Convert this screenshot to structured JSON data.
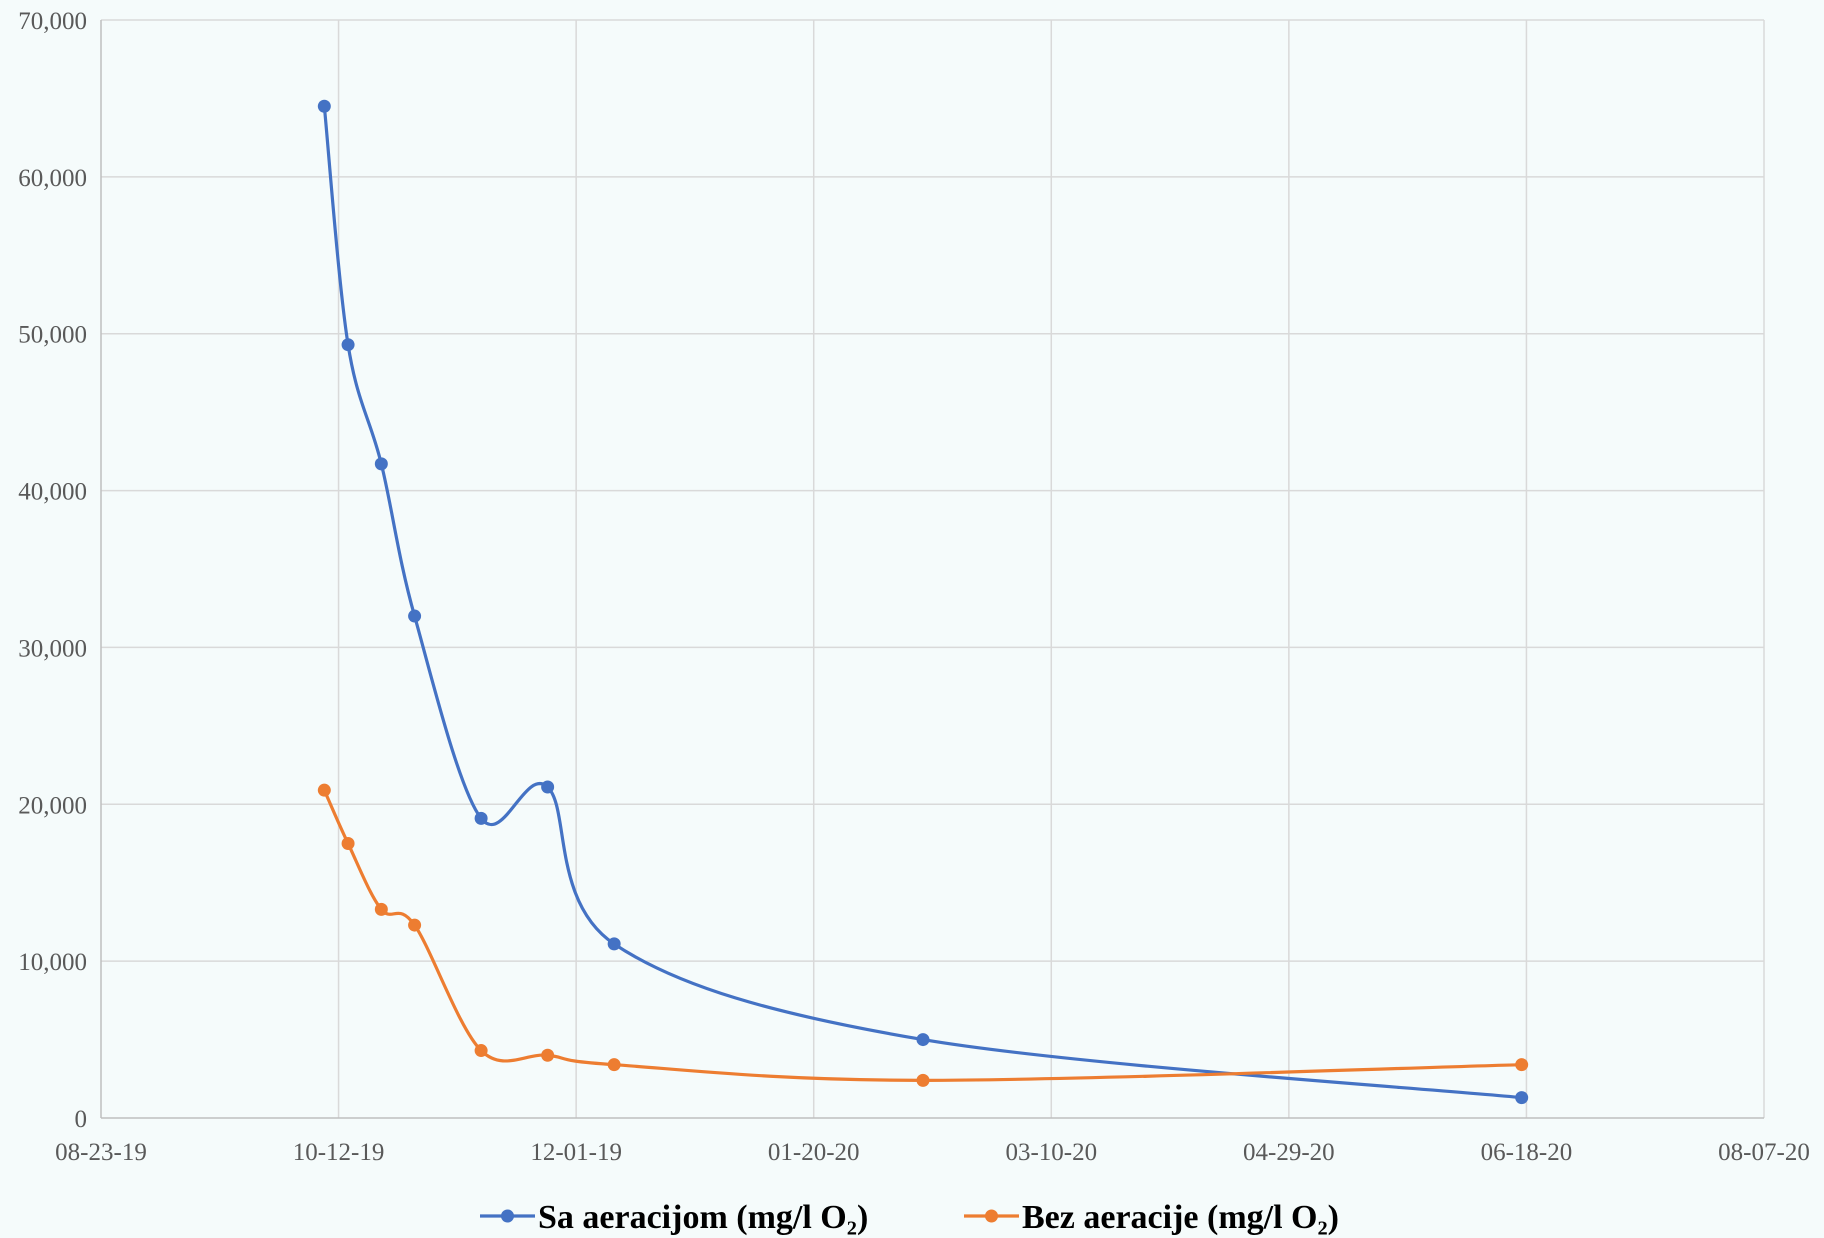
{
  "chart_data": {
    "type": "line",
    "title": "",
    "xlabel": "",
    "ylabel": "",
    "x_axis": {
      "type": "date",
      "range": [
        "2019-08-23",
        "2020-08-07"
      ],
      "tick_labels": [
        "08-23-19",
        "10-12-19",
        "12-01-19",
        "01-20-20",
        "03-10-20",
        "04-29-20",
        "06-18-20",
        "08-07-20"
      ],
      "tick_dates": [
        "2019-08-23",
        "2019-10-12",
        "2019-12-01",
        "2020-01-20",
        "2020-03-10",
        "2020-04-29",
        "2020-06-18",
        "2020-08-07"
      ]
    },
    "y_axis": {
      "range": [
        0,
        70000
      ],
      "ticks": [
        0,
        10000,
        20000,
        30000,
        40000,
        50000,
        60000,
        70000
      ],
      "tick_labels": [
        "0",
        "10,000",
        "20,000",
        "30,000",
        "40,000",
        "50,000",
        "60,000",
        "70,000"
      ]
    },
    "grid": true,
    "smooth": true,
    "legend_position": "bottom",
    "series": [
      {
        "name": "Sa aeracijom (mg/l O₂)",
        "color": "#4472c4",
        "marker": "circle",
        "points": [
          {
            "x": "2019-10-09",
            "y": 64500
          },
          {
            "x": "2019-10-14",
            "y": 49300
          },
          {
            "x": "2019-10-21",
            "y": 41700
          },
          {
            "x": "2019-10-28",
            "y": 32000
          },
          {
            "x": "2019-11-11",
            "y": 19100
          },
          {
            "x": "2019-11-25",
            "y": 21100
          },
          {
            "x": "2019-12-09",
            "y": 11100
          },
          {
            "x": "2020-02-12",
            "y": 5000
          },
          {
            "x": "2020-06-17",
            "y": 1300
          }
        ]
      },
      {
        "name": "Bez aeracije (mg/l O₂)",
        "color": "#ed7d31",
        "marker": "circle",
        "points": [
          {
            "x": "2019-10-09",
            "y": 20900
          },
          {
            "x": "2019-10-14",
            "y": 17500
          },
          {
            "x": "2019-10-21",
            "y": 13300
          },
          {
            "x": "2019-10-28",
            "y": 12300
          },
          {
            "x": "2019-11-11",
            "y": 4300
          },
          {
            "x": "2019-11-25",
            "y": 4000
          },
          {
            "x": "2019-12-09",
            "y": 3400
          },
          {
            "x": "2020-02-12",
            "y": 2400
          },
          {
            "x": "2020-06-17",
            "y": 3400
          }
        ]
      }
    ],
    "style": {
      "background": "#f5fbfb",
      "grid_color": "#d9d9d9",
      "axis_color": "#bfbfbf",
      "tick_color": "#595959"
    }
  }
}
